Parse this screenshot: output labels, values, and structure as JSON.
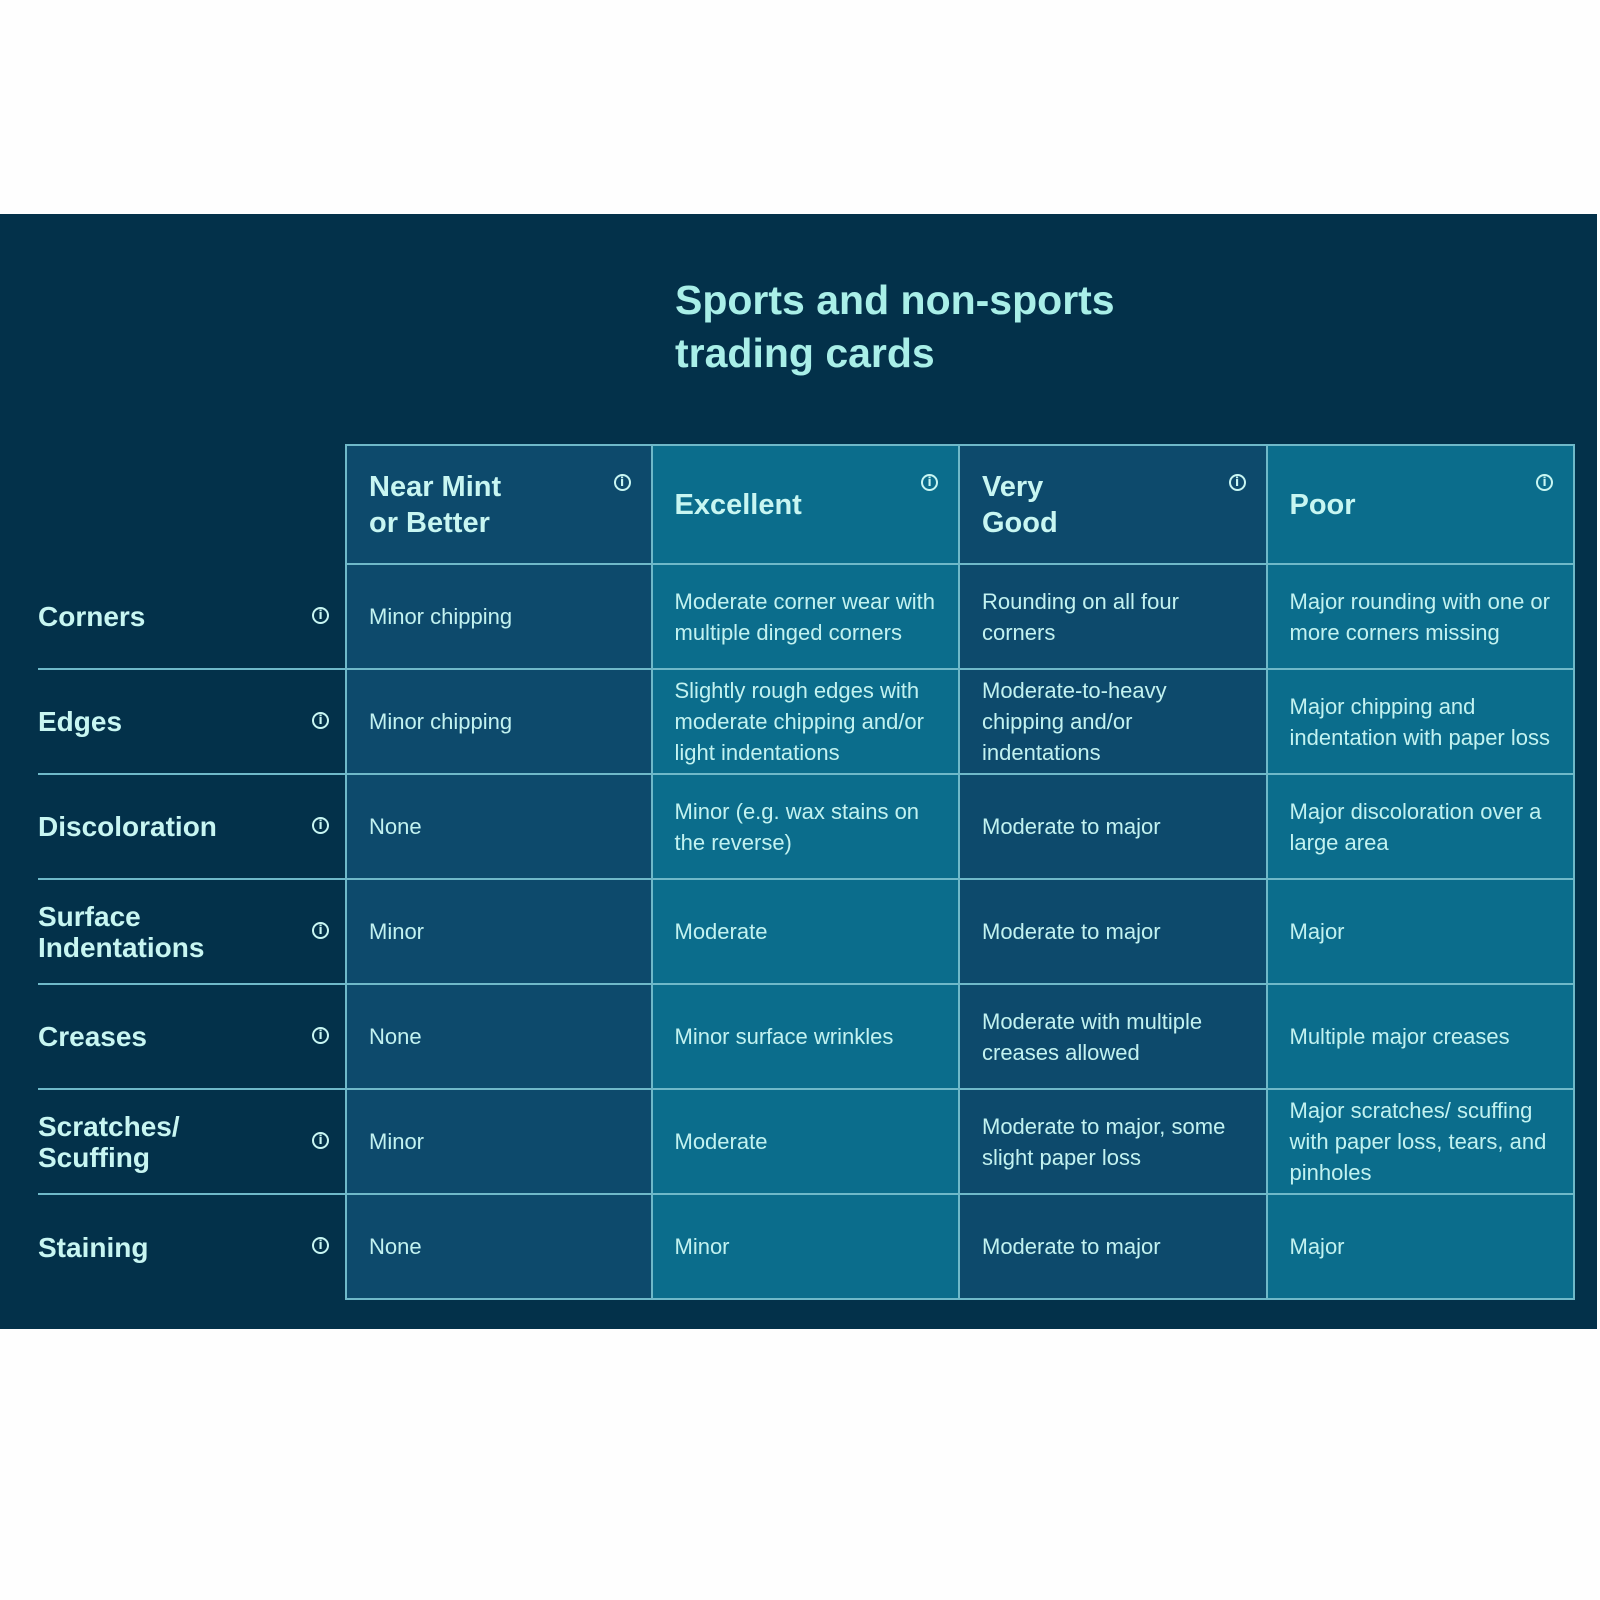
{
  "title_lines": [
    "Sports and non-sports",
    "trading cards"
  ],
  "columns": [
    "Near Mint\nor Better",
    "Excellent",
    "Very\nGood",
    "Poor"
  ],
  "rows": [
    {
      "label": "Corners",
      "cells": [
        "Minor chipping",
        "Moderate corner wear with multiple dinged corners",
        "Rounding on all four corners",
        "Major rounding with one or more corners missing"
      ]
    },
    {
      "label": "Edges",
      "cells": [
        "Minor chipping",
        "Slightly rough edges with moderate chipping and/or light indentations",
        "Moderate-to-heavy chipping and/or indentations",
        "Major chipping and indentation with paper loss"
      ]
    },
    {
      "label": "Discoloration",
      "cells": [
        "None",
        "Minor (e.g. wax stains on the reverse)",
        "Moderate to major",
        "Major discoloration over a large area"
      ]
    },
    {
      "label": "Surface\nIndentations",
      "cells": [
        "Minor",
        "Moderate",
        "Moderate to major",
        "Major"
      ]
    },
    {
      "label": "Creases",
      "cells": [
        "None",
        "Minor surface wrinkles",
        "Moderate with multiple creases allowed",
        "Multiple major creases"
      ]
    },
    {
      "label": "Scratches/\nScuffing",
      "cells": [
        "Minor",
        "Moderate",
        "Moderate to major, some slight paper loss",
        "Major scratches/ scuffing with paper loss, tears, and pinholes"
      ]
    },
    {
      "label": "Staining",
      "cells": [
        "None",
        "Minor",
        "Moderate to major",
        "Major"
      ]
    }
  ],
  "icons": {
    "info": "info-circle-icon",
    "info_glyph": "i"
  },
  "colors": {
    "panel": "#03314a",
    "col_dark": "#0d4a6c",
    "col_light": "#0b6d8c",
    "text": "#c2f2f0",
    "border": "#6fb9c9"
  }
}
